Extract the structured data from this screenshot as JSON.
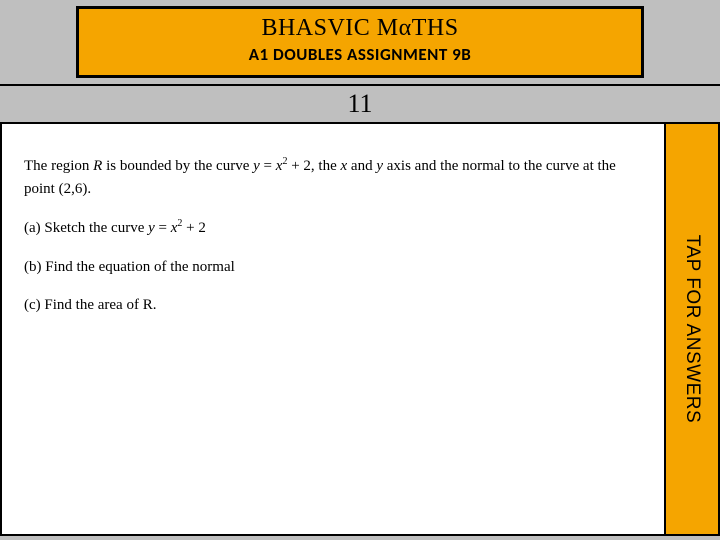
{
  "colors": {
    "page_bg": "#bfbfbf",
    "accent": "#f5a500",
    "border": "#000000",
    "content_bg": "#ffffff",
    "text": "#000000"
  },
  "header": {
    "title": "BHASVIC MαTHS",
    "title_fontsize": 24,
    "subtitle": "A1 DOUBLES ASSIGNMENT 9B",
    "subtitle_fontsize": 17
  },
  "question": {
    "number": "11",
    "number_fontsize": 26,
    "intro_html": "The region <span class='math'>R</span> is bounded by the curve <span class='math'>y</span> = <span class='math'>x</span><sup>2</sup> + 2, the <span class='math'>x</span> and <span class='math'>y</span> axis and the normal to the curve at the point (2,6).",
    "parts": [
      {
        "label": "(a)",
        "html": "(a) Sketch the curve <span class='math'>y</span> = <span class='math'>x</span><sup>2</sup> + 2"
      },
      {
        "label": "(b)",
        "html": "(b) Find the equation of the normal"
      },
      {
        "label": "(c)",
        "html": "(c) Find the area of R."
      }
    ],
    "body_fontsize": 15
  },
  "tap": {
    "label": "TAP FOR ANSWERS",
    "fontsize": 19
  }
}
